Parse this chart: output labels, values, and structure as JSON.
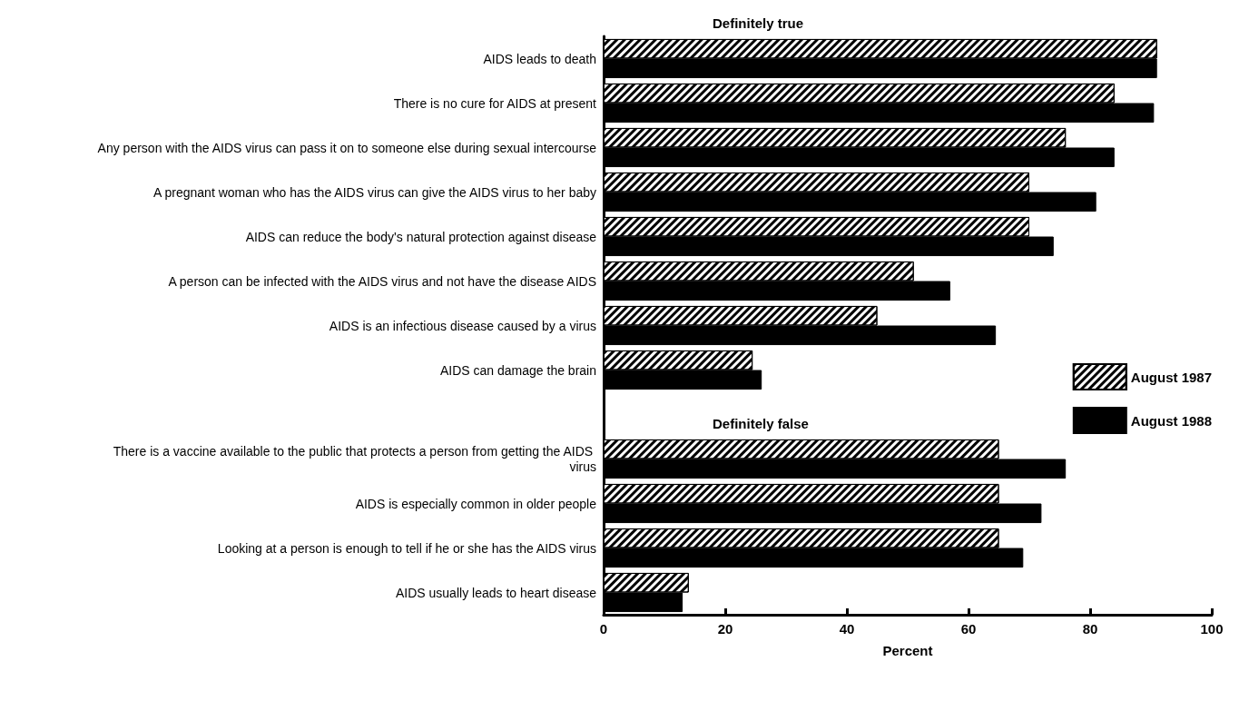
{
  "chart_data": {
    "type": "bar",
    "orientation": "horizontal",
    "categories": [
      "AIDS leads to death",
      "There is no cure for AIDS at present",
      "Any person with the AIDS virus can pass it on to someone else during sexual intercourse",
      "A pregnant woman who has the AIDS virus can give the AIDS virus to her baby",
      "AIDS can reduce the body's natural protection against disease",
      "A person can be infected with the AIDS virus and not have the disease AIDS",
      "AIDS is an infectious disease caused by a virus",
      "AIDS can damage the brain",
      null,
      "There is a vaccine available to the public that protects a person from getting the AIDS virus",
      "AIDS is especially common in older people",
      "Looking at a person is enough to tell if he or she has the AIDS virus",
      "AIDS usually leads to heart disease"
    ],
    "series": [
      {
        "name": "August 1987",
        "color": "#ffffff",
        "values": [
          91,
          84,
          76,
          70,
          70,
          51,
          45,
          24.5,
          null,
          65,
          65,
          65,
          14
        ]
      },
      {
        "name": "August 1988",
        "color": "#000000",
        "values": [
          91,
          90.5,
          84,
          81,
          74,
          57,
          64.5,
          26,
          null,
          76,
          72,
          69,
          13
        ]
      }
    ],
    "xlim": [
      0,
      100
    ],
    "xticks": [
      0,
      20,
      40,
      60,
      80,
      100
    ],
    "xlabel": "Percent",
    "annotations": [
      "Definitely true",
      "Definitely false"
    ],
    "legend": "right",
    "grid": false
  }
}
